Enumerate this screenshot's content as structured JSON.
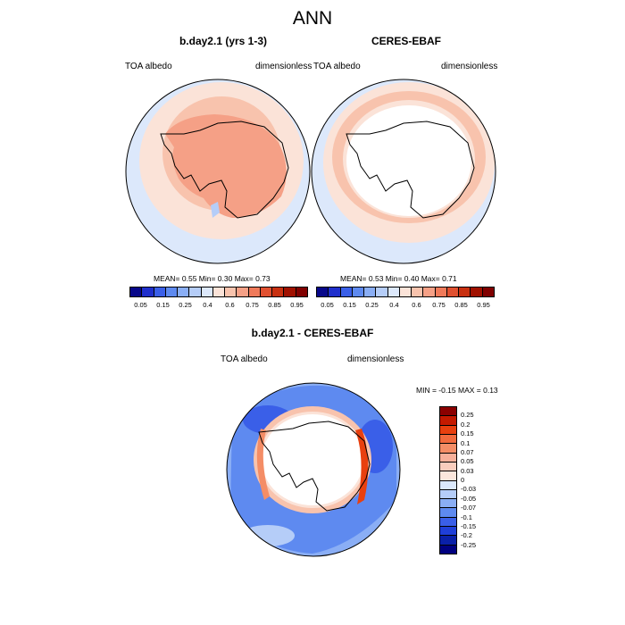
{
  "title": "ANN",
  "panels": {
    "model": {
      "title": "b.day2.1 (yrs 1-3)",
      "left_label": "TOA albedo",
      "right_label": "dimensionless",
      "stats": "MEAN=   0.55  Min=   0.30  Max=   0.73"
    },
    "obs": {
      "title": "CERES-EBAF",
      "left_label": "TOA albedo",
      "right_label": "dimensionless",
      "stats": "MEAN=   0.53  Min=   0.40  Max=   0.71"
    },
    "diff": {
      "title": "b.day2.1 - CERES-EBAF",
      "left_label": "TOA albedo",
      "right_label": "dimensionless",
      "stats": "MIN =  -0.15 MAX =   0.13"
    }
  },
  "colorbar_abs": {
    "ticks": [
      "0.05",
      "0.15",
      "0.25",
      "0.4",
      "0.6",
      "0.75",
      "0.85",
      "0.95"
    ],
    "colors": [
      "#08088a",
      "#1f2fcc",
      "#3a5fe8",
      "#5e8af0",
      "#8aaef5",
      "#b5cdf8",
      "#dce8fb",
      "#fbe3d8",
      "#f8c3ad",
      "#f5a086",
      "#f07a5a",
      "#e05030",
      "#c83010",
      "#a01000",
      "#800000"
    ]
  },
  "colorbar_diff": {
    "ticks": [
      "0.25",
      "0.2",
      "0.15",
      "0.1",
      "0.07",
      "0.05",
      "0.03",
      "0",
      "-0.03",
      "-0.05",
      "-0.07",
      "-0.1",
      "-0.15",
      "-0.2",
      "-0.25"
    ],
    "colors": [
      "#8b0000",
      "#c41a00",
      "#e8400f",
      "#f26a3d",
      "#f48d66",
      "#f7b09a",
      "#f9cdbd",
      "#fbe6dc",
      "#dbe8fb",
      "#b5cdf8",
      "#8aaef5",
      "#5e8af0",
      "#3a5fe8",
      "#1f3fd8",
      "#0a20a8",
      "#000080"
    ]
  }
}
